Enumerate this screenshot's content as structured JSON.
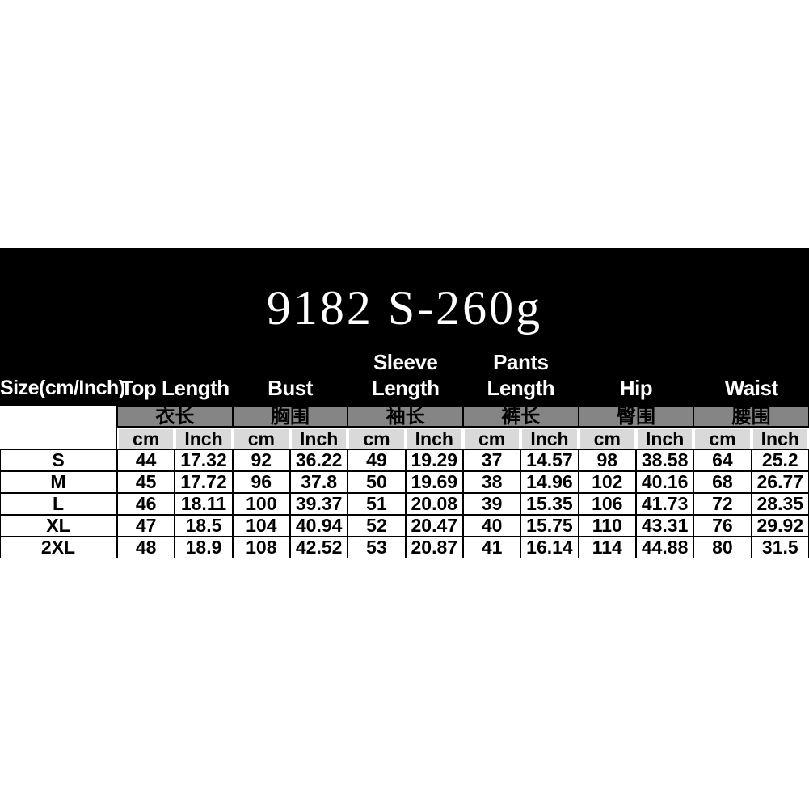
{
  "title": "9182 S-260g",
  "colors": {
    "band_bg": "#000000",
    "band_text": "#ffffff",
    "zh_header_bg": "#858585",
    "unit_header_bg": "#d9d9d9",
    "grid_line": "#000000",
    "table_text": "#000000"
  },
  "table": {
    "size_col_header": "Size(cm/Inch)",
    "groups": [
      {
        "en": "Top Length",
        "zh": "衣长"
      },
      {
        "en": "Bust",
        "zh": "胸围"
      },
      {
        "en": "Sleeve Length",
        "zh": "袖长"
      },
      {
        "en": "Pants Length",
        "zh": "裤长"
      },
      {
        "en": "Hip",
        "zh": "臀围"
      },
      {
        "en": "Waist",
        "zh": "腰围"
      }
    ],
    "unit_labels": [
      "cm",
      "Inch"
    ],
    "rows": [
      {
        "size": "S",
        "values": [
          "44",
          "17.32",
          "92",
          "36.22",
          "49",
          "19.29",
          "37",
          "14.57",
          "98",
          "38.58",
          "64",
          "25.2"
        ]
      },
      {
        "size": "M",
        "values": [
          "45",
          "17.72",
          "96",
          "37.8",
          "50",
          "19.69",
          "38",
          "14.96",
          "102",
          "40.16",
          "68",
          "26.77"
        ]
      },
      {
        "size": "L",
        "values": [
          "46",
          "18.11",
          "100",
          "39.37",
          "51",
          "20.08",
          "39",
          "15.35",
          "106",
          "41.73",
          "72",
          "28.35"
        ]
      },
      {
        "size": "XL",
        "values": [
          "47",
          "18.5",
          "104",
          "40.94",
          "52",
          "20.47",
          "40",
          "15.75",
          "110",
          "43.31",
          "76",
          "29.92"
        ]
      },
      {
        "size": "2XL",
        "values": [
          "48",
          "18.9",
          "108",
          "42.52",
          "53",
          "20.87",
          "41",
          "16.14",
          "114",
          "44.88",
          "80",
          "31.5"
        ]
      }
    ]
  },
  "chart_data": {
    "type": "table",
    "title": "9182 S-260g",
    "columns": [
      "Size(cm/Inch)",
      "Top Length cm",
      "Top Length Inch",
      "Bust cm",
      "Bust Inch",
      "Sleeve Length cm",
      "Sleeve Length Inch",
      "Pants Length cm",
      "Pants Length Inch",
      "Hip cm",
      "Hip Inch",
      "Waist cm",
      "Waist Inch"
    ],
    "rows": [
      [
        "S",
        44,
        17.32,
        92,
        36.22,
        49,
        19.29,
        37,
        14.57,
        98,
        38.58,
        64,
        25.2
      ],
      [
        "M",
        45,
        17.72,
        96,
        37.8,
        50,
        19.69,
        38,
        14.96,
        102,
        40.16,
        68,
        26.77
      ],
      [
        "L",
        46,
        18.11,
        100,
        39.37,
        51,
        20.08,
        39,
        15.35,
        106,
        41.73,
        72,
        28.35
      ],
      [
        "XL",
        47,
        18.5,
        104,
        40.94,
        52,
        20.47,
        40,
        15.75,
        110,
        43.31,
        76,
        29.92
      ],
      [
        "2XL",
        48,
        18.9,
        108,
        42.52,
        53,
        20.87,
        41,
        16.14,
        114,
        44.88,
        80,
        31.5
      ]
    ]
  }
}
